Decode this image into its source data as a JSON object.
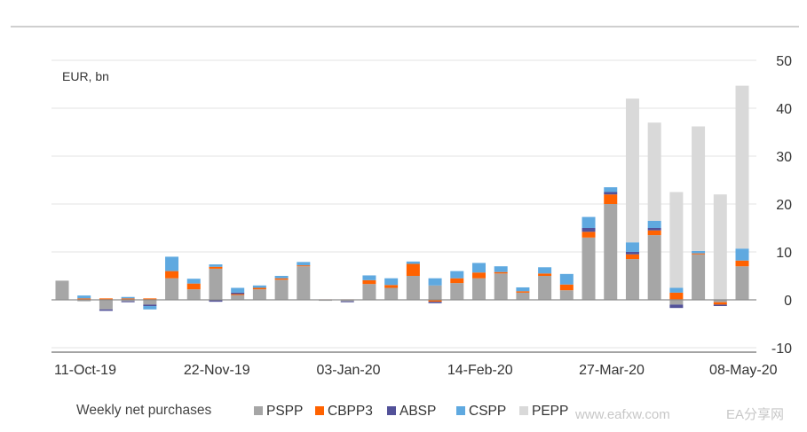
{
  "chart_data": {
    "type": "bar",
    "stacked": true,
    "unit_label": "EUR, bn",
    "ylim": [
      -10,
      50
    ],
    "yticks": [
      50,
      40,
      30,
      20,
      10,
      0,
      -10
    ],
    "y_axis_side": "right",
    "grid": true,
    "legend_title": "Weekly net purchases",
    "legend_position": "bottom",
    "x_tick_labels": [
      "11-Oct-19",
      "22-Nov-19",
      "03-Jan-20",
      "14-Feb-20",
      "27-Mar-20",
      "08-May-20"
    ],
    "x_tick_indices": [
      0,
      6,
      12,
      18,
      24,
      30
    ],
    "bar_count": 32,
    "series": [
      {
        "name": "PSPP",
        "color": "#a6a6a6",
        "values": [
          4.0,
          -0.3,
          -2.0,
          -0.3,
          -1.0,
          4.5,
          2.2,
          6.5,
          1.0,
          2.2,
          4.2,
          7.0,
          -0.2,
          -0.3,
          3.3,
          2.5,
          5.0,
          3.0,
          3.5,
          4.5,
          5.5,
          1.5,
          5.0,
          2.0,
          13.0,
          20.0,
          8.5,
          13.5,
          -1.0,
          9.5,
          -0.5,
          7.0
        ]
      },
      {
        "name": "CBPP3",
        "color": "#ff6200",
        "values": [
          0.0,
          0.3,
          0.3,
          0.3,
          0.3,
          1.5,
          1.2,
          0.4,
          0.2,
          0.3,
          0.3,
          0.2,
          0.1,
          0.1,
          0.8,
          0.6,
          2.5,
          -0.4,
          1.0,
          1.2,
          0.3,
          0.3,
          0.5,
          1.2,
          1.2,
          2.0,
          1.0,
          1.0,
          1.5,
          0.2,
          -0.5,
          1.2
        ]
      },
      {
        "name": "ABSP",
        "color": "#525199",
        "values": [
          0.0,
          0.0,
          -0.3,
          -0.2,
          -0.3,
          0.0,
          0.0,
          -0.4,
          0.3,
          0.0,
          0.0,
          0.0,
          0.0,
          -0.2,
          0.0,
          0.0,
          0.0,
          -0.3,
          0.0,
          0.0,
          0.0,
          0.0,
          0.0,
          0.0,
          0.8,
          0.5,
          0.5,
          0.5,
          -0.7,
          0.0,
          -0.3,
          0.0
        ]
      },
      {
        "name": "CSPP",
        "color": "#5fa9e0",
        "values": [
          0.0,
          0.6,
          0.0,
          0.3,
          -0.7,
          3.0,
          1.0,
          0.5,
          1.0,
          0.5,
          0.5,
          0.7,
          0.0,
          0.0,
          1.0,
          1.4,
          0.5,
          1.5,
          1.5,
          2.0,
          1.2,
          0.8,
          1.3,
          2.2,
          2.3,
          1.0,
          2.0,
          1.5,
          1.0,
          0.5,
          0.0,
          2.5
        ]
      },
      {
        "name": "PEPP",
        "color": "#d9d9d9",
        "values": [
          0,
          0,
          0,
          0,
          0,
          0,
          0,
          0,
          0,
          0,
          0,
          0,
          0,
          0,
          0,
          0,
          0,
          0,
          0,
          0,
          0,
          0,
          0,
          0,
          0,
          0,
          30.0,
          20.5,
          20.0,
          26.0,
          22.0,
          34.0
        ]
      }
    ]
  },
  "watermark": {
    "site": "www.eafxw.com",
    "brand": "EA分享网"
  }
}
